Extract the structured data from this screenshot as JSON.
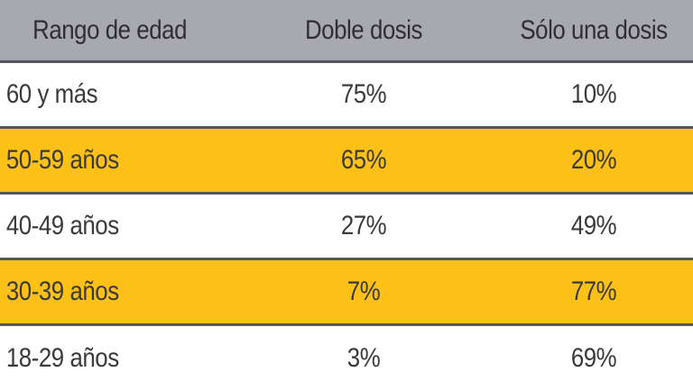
{
  "chart_data": {
    "type": "table",
    "columns": [
      "Rango de edad",
      "Doble dosis",
      "Sólo una dosis"
    ],
    "rows": [
      [
        "60 y más",
        "75%",
        "10%"
      ],
      [
        "50-59 años",
        "65%",
        "20%"
      ],
      [
        "40-49 años",
        "27%",
        "49%"
      ],
      [
        "30-39 años",
        "7%",
        "77%"
      ],
      [
        "18-29 años",
        "3%",
        "69%"
      ]
    ]
  },
  "colors": {
    "header_bg": "#a8a8b0",
    "highlight_row": "#fcc017",
    "divider": "#55555c"
  }
}
